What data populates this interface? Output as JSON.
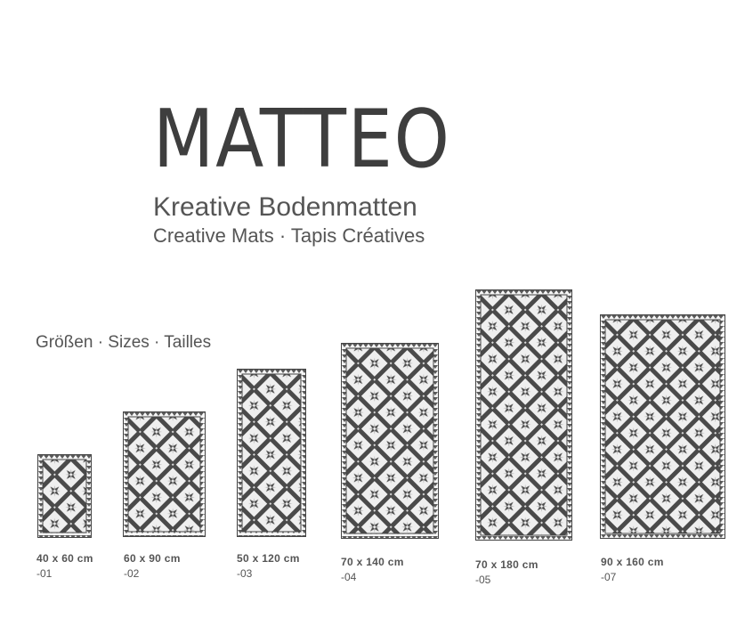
{
  "header": {
    "brand": "MATTEO",
    "subtitle_de": "Kreative Bodenmatten",
    "subtitle_multi": "Creative Mats · Tapis Créatives"
  },
  "sizes_section": {
    "title": "Größen · Sizes · Tailles",
    "items": [
      {
        "size": "40 x 60 cm",
        "code": "-01"
      },
      {
        "size": "60 x 90 cm",
        "code": "-02"
      },
      {
        "size": "50 x 120 cm",
        "code": "-03"
      },
      {
        "size": "70 x 140 cm",
        "code": "-04"
      },
      {
        "size": "70 x 180 cm",
        "code": "-05"
      },
      {
        "size": "90 x 160 cm",
        "code": "-07"
      }
    ]
  },
  "colors": {
    "pattern_dark": "#4a4a4a",
    "pattern_light": "#dcdcdc",
    "pattern_bg": "#f2f2f2",
    "text": "#555555"
  }
}
